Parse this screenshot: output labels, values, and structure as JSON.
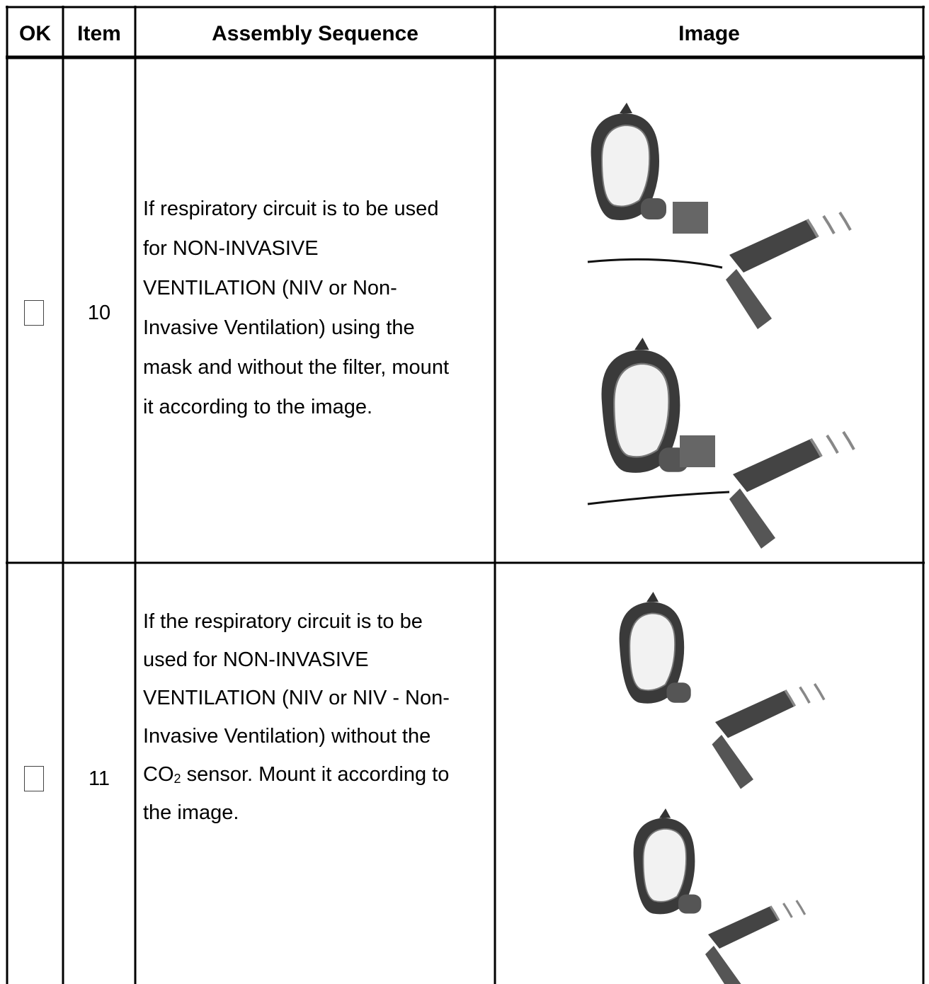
{
  "table": {
    "header": [
      "OK",
      "Item",
      "Assembly Sequence",
      "Image"
    ],
    "rows": [
      {
        "item": "10",
        "text_lines": [
          "If respiratory circuit is to be used",
          "for NON-INVASIVE",
          "VENTILATION (NIV or Non-",
          "Invasive Ventilation) using the",
          "mask and without the filter, mount",
          "it according to the image."
        ]
      },
      {
        "item": "11",
        "text_lines": [
          "If the respiratory circuit is to be",
          "used for NON-INVASIVE",
          "VENTILATION (NIV or NIV - Non-",
          "Invasive Ventilation) without the",
          {
            "text": "CO",
            "sub": "2",
            "rest": " sensor. Mount it according to"
          },
          "the image."
        ]
      }
    ]
  }
}
